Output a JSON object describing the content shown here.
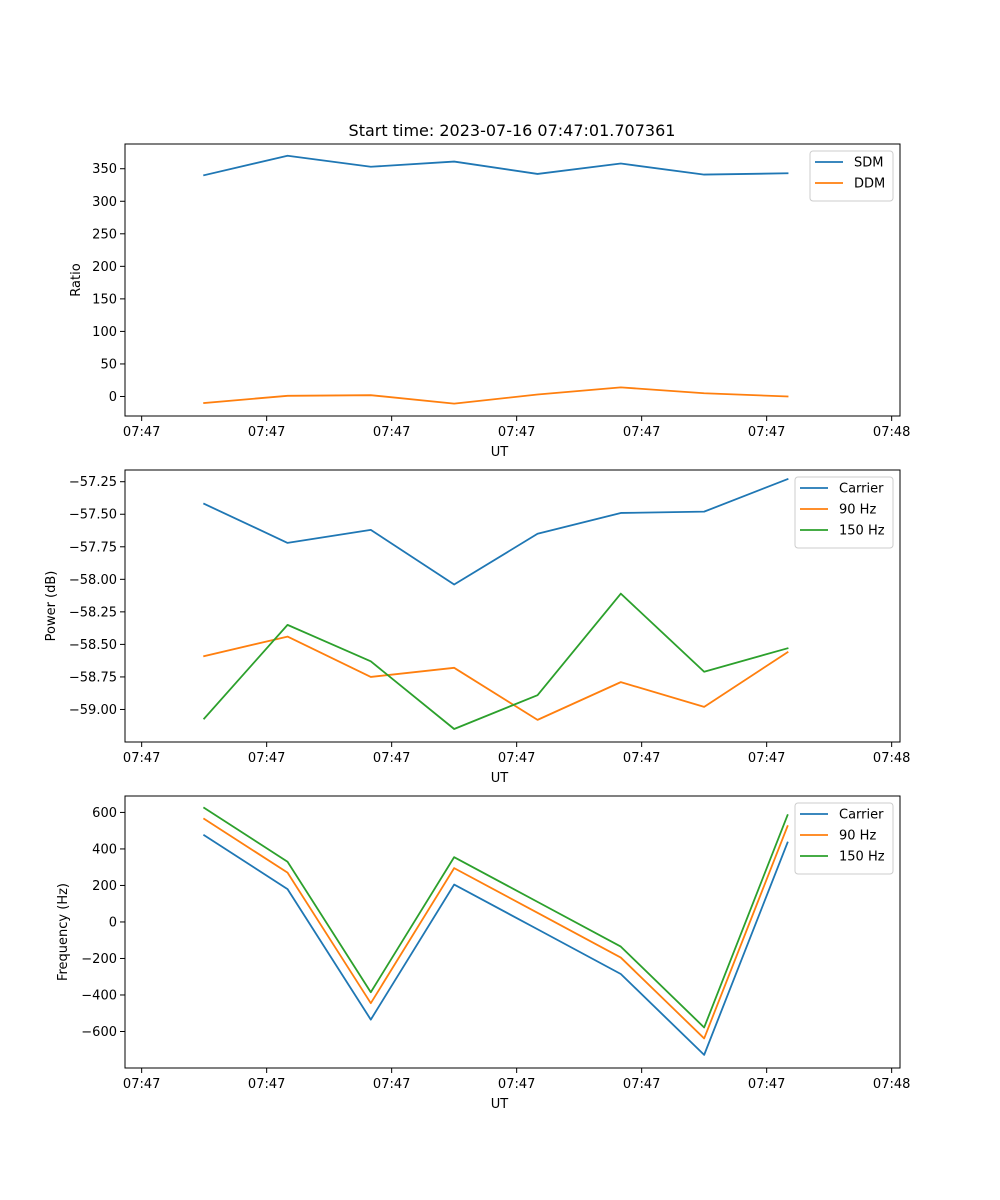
{
  "figure": {
    "title": "Start time: 2023-07-16 07:47:01.707361",
    "colors": {
      "blue": "#1f77b4",
      "orange": "#ff7f0e",
      "green": "#2ca02c"
    }
  },
  "chart_data": [
    {
      "type": "line",
      "title": "Start time: 2023-07-16 07:47:01.707361",
      "xlabel": "UT",
      "ylabel": "Ratio",
      "x_tick_labels": [
        "07:47",
        "07:47",
        "07:47",
        "07:47",
        "07:47",
        "07:47",
        "07:48"
      ],
      "xlim": [
        -0.1333,
        6.0667
      ],
      "ylim": [
        -30,
        388
      ],
      "yticks": [
        0,
        50,
        100,
        150,
        200,
        250,
        300,
        350
      ],
      "ytick_labels": [
        "0",
        "50",
        "100",
        "150",
        "200",
        "250",
        "300",
        "350"
      ],
      "legend_position": "top-right",
      "x": [
        0.5,
        1.167,
        1.833,
        2.5,
        3.167,
        3.833,
        4.5,
        5.167
      ],
      "series": [
        {
          "name": "SDM",
          "color": "#1f77b4",
          "values": [
            340,
            370,
            353,
            361,
            342,
            358,
            341,
            343
          ]
        },
        {
          "name": "DDM",
          "color": "#ff7f0e",
          "values": [
            -10,
            1,
            2,
            -11,
            3,
            14,
            5,
            0
          ]
        }
      ]
    },
    {
      "type": "line",
      "title": "",
      "xlabel": "UT",
      "ylabel": "Power (dB)",
      "x_tick_labels": [
        "07:47",
        "07:47",
        "07:47",
        "07:47",
        "07:47",
        "07:47",
        "07:48"
      ],
      "xlim": [
        -0.1333,
        6.0667
      ],
      "ylim": [
        -59.25,
        -57.16
      ],
      "yticks": [
        -59.0,
        -58.75,
        -58.5,
        -58.25,
        -58.0,
        -57.75,
        -57.5,
        -57.25
      ],
      "ytick_labels": [
        "−59.00",
        "−58.75",
        "−58.50",
        "−58.25",
        "−58.00",
        "−57.75",
        "−57.50",
        "−57.25"
      ],
      "legend_position": "top-right",
      "x": [
        0.5,
        1.167,
        1.833,
        2.5,
        3.167,
        3.833,
        4.5,
        5.167
      ],
      "series": [
        {
          "name": "Carrier",
          "color": "#1f77b4",
          "values": [
            -57.42,
            -57.72,
            -57.62,
            -58.04,
            -57.65,
            -57.49,
            -57.48,
            -57.23
          ]
        },
        {
          "name": "90 Hz",
          "color": "#ff7f0e",
          "values": [
            -58.59,
            -58.44,
            -58.75,
            -58.68,
            -59.08,
            -58.79,
            -58.98,
            -58.56
          ]
        },
        {
          "name": "150 Hz",
          "color": "#2ca02c",
          "values": [
            -59.07,
            -58.35,
            -58.63,
            -59.15,
            -58.89,
            -58.11,
            -58.71,
            -58.53
          ]
        }
      ]
    },
    {
      "type": "line",
      "title": "",
      "xlabel": "UT",
      "ylabel": "Frequency (Hz)",
      "x_tick_labels": [
        "07:47",
        "07:47",
        "07:47",
        "07:47",
        "07:47",
        "07:47",
        "07:48"
      ],
      "xlim": [
        -0.1333,
        6.0667
      ],
      "ylim": [
        -800,
        690
      ],
      "yticks": [
        -600,
        -400,
        -200,
        0,
        200,
        400,
        600
      ],
      "ytick_labels": [
        "−600",
        "−400",
        "−200",
        "0",
        "200",
        "400",
        "600"
      ],
      "legend_position": "top-right",
      "x": [
        0.5,
        1.167,
        1.833,
        2.5,
        3.167,
        3.833,
        4.5,
        5.167
      ],
      "series": [
        {
          "name": "Carrier",
          "color": "#1f77b4",
          "values": [
            475,
            180,
            -535,
            205,
            -40,
            -285,
            -728,
            435
          ]
        },
        {
          "name": "90 Hz",
          "color": "#ff7f0e",
          "values": [
            565,
            270,
            -445,
            295,
            50,
            -195,
            -638,
            525
          ]
        },
        {
          "name": "150 Hz",
          "color": "#2ca02c",
          "values": [
            625,
            330,
            -385,
            355,
            110,
            -135,
            -578,
            585
          ]
        }
      ]
    }
  ]
}
